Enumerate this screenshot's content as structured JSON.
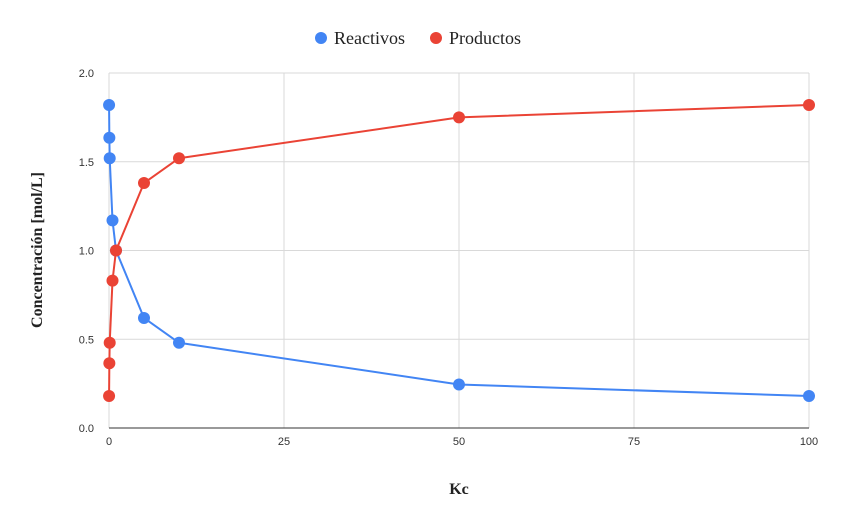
{
  "chart_data": {
    "type": "line",
    "title": "",
    "xlabel": "Kc",
    "ylabel": "Concentración [mol/L]",
    "xlim": [
      0,
      100
    ],
    "ylim": [
      0,
      2.0
    ],
    "x_ticks": [
      "0",
      "25",
      "50",
      "75",
      "100"
    ],
    "y_ticks": [
      "0.0",
      "0.5",
      "1.0",
      "1.5",
      "2.0"
    ],
    "grid": true,
    "legend_position": "top",
    "series": [
      {
        "name": "Reactivos",
        "color": "#4285f4",
        "points": [
          {
            "x": 0.01,
            "y": 1.82
          },
          {
            "x": 0.05,
            "y": 1.635
          },
          {
            "x": 0.1,
            "y": 1.52
          },
          {
            "x": 0.5,
            "y": 1.17
          },
          {
            "x": 1,
            "y": 1.0
          },
          {
            "x": 5,
            "y": 0.62
          },
          {
            "x": 10,
            "y": 0.48
          },
          {
            "x": 50,
            "y": 0.245
          },
          {
            "x": 100,
            "y": 0.18
          }
        ]
      },
      {
        "name": "Productos",
        "color": "#ea4335",
        "points": [
          {
            "x": 0.01,
            "y": 0.18
          },
          {
            "x": 0.05,
            "y": 0.365
          },
          {
            "x": 0.1,
            "y": 0.48
          },
          {
            "x": 0.5,
            "y": 0.83
          },
          {
            "x": 1,
            "y": 1.0
          },
          {
            "x": 5,
            "y": 1.38
          },
          {
            "x": 10,
            "y": 1.52
          },
          {
            "x": 50,
            "y": 1.75
          },
          {
            "x": 100,
            "y": 1.82
          }
        ]
      }
    ]
  }
}
